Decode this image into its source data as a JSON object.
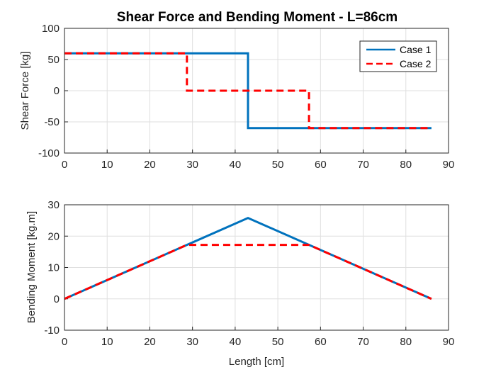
{
  "chart_data": [
    {
      "type": "line",
      "title": "Shear Force and Bending Moment - L=86cm",
      "xlabel": "",
      "ylabel": "Shear Force [kg]",
      "xlim": [
        0,
        90
      ],
      "ylim": [
        -100,
        100
      ],
      "xticks": [
        0,
        10,
        20,
        30,
        40,
        50,
        60,
        70,
        80,
        90
      ],
      "yticks": [
        100,
        50,
        0,
        -50,
        -100
      ],
      "grid": true,
      "legend_position": "top-right",
      "series": [
        {
          "name": "Case 1",
          "color": "#0072bd",
          "style": "solid",
          "x": [
            0,
            43,
            43,
            86
          ],
          "y": [
            60,
            60,
            -60,
            -60
          ]
        },
        {
          "name": "Case 2",
          "color": "#ff0000",
          "style": "dashed",
          "x": [
            0,
            28.7,
            28.7,
            57.3,
            57.3,
            86
          ],
          "y": [
            60,
            60,
            0,
            0,
            -60,
            -60
          ]
        }
      ]
    },
    {
      "type": "line",
      "title": "",
      "xlabel": "Length [cm]",
      "ylabel": "Bending Moment [kg.m]",
      "xlim": [
        0,
        90
      ],
      "ylim": [
        -10,
        30
      ],
      "xticks": [
        0,
        10,
        20,
        30,
        40,
        50,
        60,
        70,
        80,
        90
      ],
      "yticks": [
        30,
        20,
        10,
        0,
        -10
      ],
      "grid": true,
      "series": [
        {
          "color": "#0072bd",
          "style": "solid",
          "x": [
            0,
            43,
            86
          ],
          "y": [
            0,
            25.8,
            0
          ]
        },
        {
          "color": "#ff0000",
          "style": "dashed",
          "x": [
            0,
            28.7,
            57.3,
            86
          ],
          "y": [
            0,
            17.2,
            17.2,
            0
          ]
        }
      ]
    }
  ]
}
